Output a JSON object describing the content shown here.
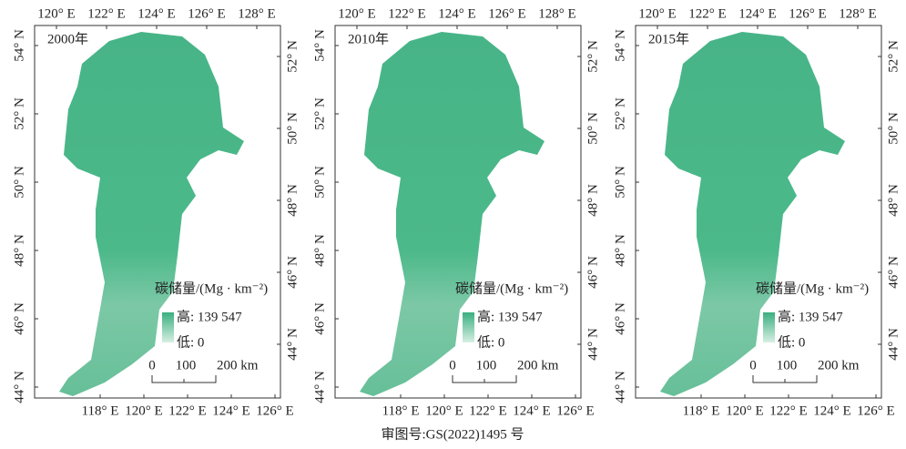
{
  "panels": [
    {
      "year": "2000年",
      "top_ticks": [
        "120° E",
        "122° E",
        "124° E",
        "126° E",
        "128° E"
      ],
      "bottom_ticks": [
        "118° E",
        "120° E",
        "122° E",
        "124° E",
        "126° E"
      ],
      "left_ticks": [
        "54° N",
        "52° N",
        "50° N",
        "48° N",
        "46° N",
        "44° N"
      ],
      "right_ticks": [
        "52° N",
        "50° N",
        "48° N",
        "46° N",
        "44° N"
      ],
      "legend": {
        "title": "碳储量/(Mg · km⁻²)",
        "high": "高: 139 547",
        "low": "低: 0"
      },
      "scale": [
        "0",
        "100",
        "200 km"
      ]
    },
    {
      "year": "2010年",
      "top_ticks": [
        "120° E",
        "122° E",
        "124° E",
        "126° E",
        "128° E"
      ],
      "bottom_ticks": [
        "118° E",
        "120° E",
        "122° E",
        "124° E",
        "126° E"
      ],
      "left_ticks": [
        "54° N",
        "52° N",
        "50° N",
        "48° N",
        "46° N",
        "44° N"
      ],
      "right_ticks": [
        "52° N",
        "50° N",
        "48° N",
        "46° N",
        "44° N"
      ],
      "legend": {
        "title": "碳储量/(Mg · km⁻²)",
        "high": "高: 139 547",
        "low": "低: 0"
      },
      "scale": [
        "0",
        "100",
        "200 km"
      ]
    },
    {
      "year": "2015年",
      "top_ticks": [
        "120° E",
        "122° E",
        "124° E",
        "126° E",
        "128° E"
      ],
      "bottom_ticks": [
        "118° E",
        "120° E",
        "122° E",
        "124° E",
        "126° E"
      ],
      "left_ticks": [
        "54° N",
        "52° N",
        "50° N",
        "48° N",
        "46° N",
        "44° N"
      ],
      "right_ticks": [
        "52° N",
        "50° N",
        "48° N",
        "46° N",
        "44° N"
      ],
      "legend": {
        "title": "碳储量/(Mg · km⁻²)",
        "high": "高: 139 547",
        "low": "低: 0"
      },
      "scale": [
        "0",
        "100",
        "200 km"
      ]
    }
  ],
  "footer": "审图号:GS(2022)1495 号"
}
